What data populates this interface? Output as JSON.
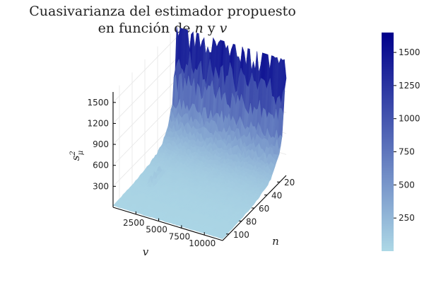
{
  "chart_data": {
    "type": "surface",
    "title": {
      "line1": "Cuasivarianza del estimador propuesto",
      "line2_prefix": "en función de",
      "line2_var1": "n",
      "line2_mid": "y",
      "line2_var2": "v"
    },
    "axes": {
      "x": {
        "label": "v",
        "ticks": [
          "2500",
          "5000",
          "7500",
          "10000"
        ],
        "tick_values": [
          2500,
          5000,
          7500,
          10000
        ],
        "range": [
          0,
          12000
        ]
      },
      "y": {
        "label": "n",
        "ticks": [
          "20",
          "40",
          "60",
          "80",
          "100"
        ],
        "tick_values": [
          20,
          40,
          60,
          80,
          100
        ],
        "range": [
          10,
          110
        ]
      },
      "z": {
        "label_base": "s",
        "label_sup": "2",
        "label_sub": "μ",
        "ticks": [
          "300",
          "600",
          "900",
          "1200",
          "1500"
        ],
        "tick_values": [
          300,
          600,
          900,
          1200,
          1500
        ],
        "range": [
          0,
          1650
        ]
      }
    },
    "colorbar": {
      "ticks": [
        "250",
        "500",
        "750",
        "1000",
        "1250",
        "1500"
      ],
      "tick_values": [
        250,
        500,
        750,
        1000,
        1250,
        1500
      ],
      "range": [
        0,
        1650
      ],
      "colors": {
        "low": "#add8e6",
        "high": "#00008b"
      }
    },
    "surface": {
      "peak_value": 1650,
      "typical_max_at_smallest_n": 1550,
      "floor_value": 0,
      "description_of_trend": "s^2 rises sharply as n decreases toward 10; nearly flat near 0 for large n"
    },
    "grid": true
  }
}
